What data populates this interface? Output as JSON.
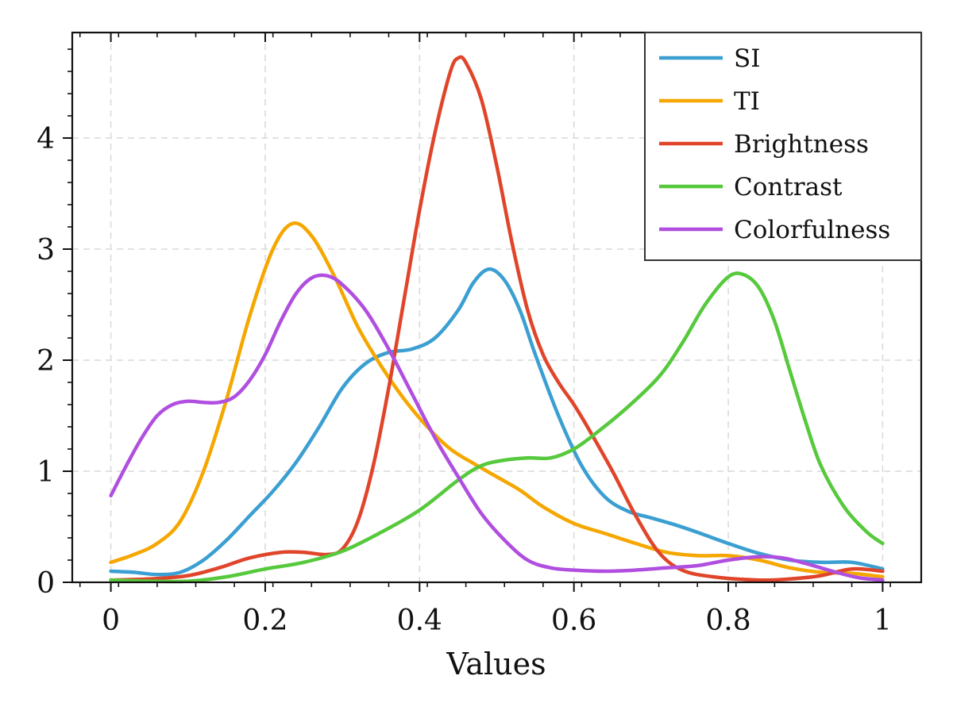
{
  "chart_data": {
    "type": "line",
    "title": "",
    "xlabel": "Values",
    "ylabel": "",
    "xlim": [
      -0.05,
      1.05
    ],
    "ylim": [
      0,
      4.95
    ],
    "x_ticks": [
      0,
      0.2,
      0.4,
      0.6,
      0.8,
      1
    ],
    "x_tick_labels": [
      "0",
      "0.2",
      "0.4",
      "0.6",
      "0.8",
      "1"
    ],
    "y_ticks": [
      0,
      1,
      2,
      3,
      4
    ],
    "y_tick_labels": [
      "0",
      "1",
      "2",
      "3",
      "4"
    ],
    "grid": true,
    "legend_position": "top-right",
    "series": [
      {
        "name": "SI",
        "color": "#3b9fd1",
        "points": [
          [
            0,
            0.1
          ],
          [
            0.03,
            0.09
          ],
          [
            0.06,
            0.07
          ],
          [
            0.09,
            0.09
          ],
          [
            0.12,
            0.2
          ],
          [
            0.15,
            0.38
          ],
          [
            0.18,
            0.6
          ],
          [
            0.21,
            0.82
          ],
          [
            0.24,
            1.08
          ],
          [
            0.27,
            1.4
          ],
          [
            0.3,
            1.75
          ],
          [
            0.33,
            1.97
          ],
          [
            0.36,
            2.07
          ],
          [
            0.39,
            2.1
          ],
          [
            0.42,
            2.2
          ],
          [
            0.45,
            2.45
          ],
          [
            0.47,
            2.7
          ],
          [
            0.49,
            2.82
          ],
          [
            0.51,
            2.72
          ],
          [
            0.53,
            2.45
          ],
          [
            0.55,
            2.05
          ],
          [
            0.58,
            1.5
          ],
          [
            0.61,
            1.05
          ],
          [
            0.64,
            0.77
          ],
          [
            0.67,
            0.64
          ],
          [
            0.7,
            0.58
          ],
          [
            0.73,
            0.52
          ],
          [
            0.76,
            0.45
          ],
          [
            0.8,
            0.35
          ],
          [
            0.84,
            0.26
          ],
          [
            0.88,
            0.2
          ],
          [
            0.92,
            0.18
          ],
          [
            0.96,
            0.18
          ],
          [
            1.0,
            0.12
          ]
        ]
      },
      {
        "name": "TI",
        "color": "#f5a700",
        "points": [
          [
            0,
            0.18
          ],
          [
            0.03,
            0.25
          ],
          [
            0.06,
            0.35
          ],
          [
            0.09,
            0.55
          ],
          [
            0.12,
            1.0
          ],
          [
            0.15,
            1.65
          ],
          [
            0.18,
            2.4
          ],
          [
            0.21,
            3.0
          ],
          [
            0.235,
            3.23
          ],
          [
            0.26,
            3.12
          ],
          [
            0.29,
            2.75
          ],
          [
            0.32,
            2.3
          ],
          [
            0.35,
            1.95
          ],
          [
            0.38,
            1.65
          ],
          [
            0.41,
            1.4
          ],
          [
            0.44,
            1.2
          ],
          [
            0.47,
            1.07
          ],
          [
            0.5,
            0.95
          ],
          [
            0.53,
            0.83
          ],
          [
            0.56,
            0.68
          ],
          [
            0.6,
            0.53
          ],
          [
            0.64,
            0.44
          ],
          [
            0.68,
            0.35
          ],
          [
            0.72,
            0.27
          ],
          [
            0.76,
            0.24
          ],
          [
            0.8,
            0.24
          ],
          [
            0.84,
            0.2
          ],
          [
            0.88,
            0.13
          ],
          [
            0.92,
            0.09
          ],
          [
            0.96,
            0.08
          ],
          [
            1.0,
            0.05
          ]
        ]
      },
      {
        "name": "Brightness",
        "color": "#e0452a",
        "points": [
          [
            0,
            0.02
          ],
          [
            0.05,
            0.03
          ],
          [
            0.1,
            0.06
          ],
          [
            0.14,
            0.13
          ],
          [
            0.18,
            0.22
          ],
          [
            0.22,
            0.27
          ],
          [
            0.25,
            0.27
          ],
          [
            0.28,
            0.25
          ],
          [
            0.3,
            0.3
          ],
          [
            0.32,
            0.55
          ],
          [
            0.34,
            1.05
          ],
          [
            0.36,
            1.75
          ],
          [
            0.38,
            2.55
          ],
          [
            0.4,
            3.35
          ],
          [
            0.42,
            4.05
          ],
          [
            0.44,
            4.6
          ],
          [
            0.45,
            4.72
          ],
          [
            0.46,
            4.68
          ],
          [
            0.48,
            4.35
          ],
          [
            0.5,
            3.75
          ],
          [
            0.52,
            3.05
          ],
          [
            0.54,
            2.45
          ],
          [
            0.56,
            2.05
          ],
          [
            0.58,
            1.8
          ],
          [
            0.6,
            1.6
          ],
          [
            0.62,
            1.37
          ],
          [
            0.65,
            1.0
          ],
          [
            0.68,
            0.6
          ],
          [
            0.71,
            0.27
          ],
          [
            0.74,
            0.11
          ],
          [
            0.78,
            0.05
          ],
          [
            0.84,
            0.02
          ],
          [
            0.88,
            0.03
          ],
          [
            0.92,
            0.06
          ],
          [
            0.96,
            0.12
          ],
          [
            1.0,
            0.1
          ]
        ]
      },
      {
        "name": "Contrast",
        "color": "#56c93c",
        "points": [
          [
            0,
            0.02
          ],
          [
            0.05,
            0.01
          ],
          [
            0.1,
            0.01
          ],
          [
            0.15,
            0.05
          ],
          [
            0.2,
            0.12
          ],
          [
            0.25,
            0.18
          ],
          [
            0.3,
            0.28
          ],
          [
            0.35,
            0.45
          ],
          [
            0.4,
            0.65
          ],
          [
            0.45,
            0.92
          ],
          [
            0.48,
            1.05
          ],
          [
            0.51,
            1.1
          ],
          [
            0.54,
            1.12
          ],
          [
            0.57,
            1.12
          ],
          [
            0.6,
            1.2
          ],
          [
            0.63,
            1.35
          ],
          [
            0.67,
            1.58
          ],
          [
            0.71,
            1.85
          ],
          [
            0.74,
            2.15
          ],
          [
            0.77,
            2.5
          ],
          [
            0.8,
            2.75
          ],
          [
            0.82,
            2.77
          ],
          [
            0.84,
            2.65
          ],
          [
            0.86,
            2.35
          ],
          [
            0.88,
            1.9
          ],
          [
            0.9,
            1.45
          ],
          [
            0.92,
            1.05
          ],
          [
            0.95,
            0.68
          ],
          [
            0.98,
            0.45
          ],
          [
            1.0,
            0.35
          ]
        ]
      },
      {
        "name": "Colorfulness",
        "color": "#b04ee0",
        "points": [
          [
            0,
            0.78
          ],
          [
            0.02,
            1.05
          ],
          [
            0.04,
            1.3
          ],
          [
            0.06,
            1.5
          ],
          [
            0.08,
            1.6
          ],
          [
            0.1,
            1.63
          ],
          [
            0.12,
            1.62
          ],
          [
            0.14,
            1.62
          ],
          [
            0.16,
            1.67
          ],
          [
            0.18,
            1.82
          ],
          [
            0.2,
            2.05
          ],
          [
            0.22,
            2.35
          ],
          [
            0.24,
            2.6
          ],
          [
            0.26,
            2.74
          ],
          [
            0.28,
            2.76
          ],
          [
            0.3,
            2.68
          ],
          [
            0.33,
            2.45
          ],
          [
            0.36,
            2.1
          ],
          [
            0.39,
            1.7
          ],
          [
            0.42,
            1.3
          ],
          [
            0.45,
            0.95
          ],
          [
            0.48,
            0.62
          ],
          [
            0.51,
            0.38
          ],
          [
            0.54,
            0.2
          ],
          [
            0.57,
            0.13
          ],
          [
            0.6,
            0.11
          ],
          [
            0.64,
            0.1
          ],
          [
            0.68,
            0.11
          ],
          [
            0.72,
            0.13
          ],
          [
            0.76,
            0.15
          ],
          [
            0.8,
            0.2
          ],
          [
            0.84,
            0.23
          ],
          [
            0.87,
            0.22
          ],
          [
            0.9,
            0.17
          ],
          [
            0.94,
            0.09
          ],
          [
            0.97,
            0.04
          ],
          [
            1.0,
            0.02
          ]
        ]
      }
    ]
  }
}
